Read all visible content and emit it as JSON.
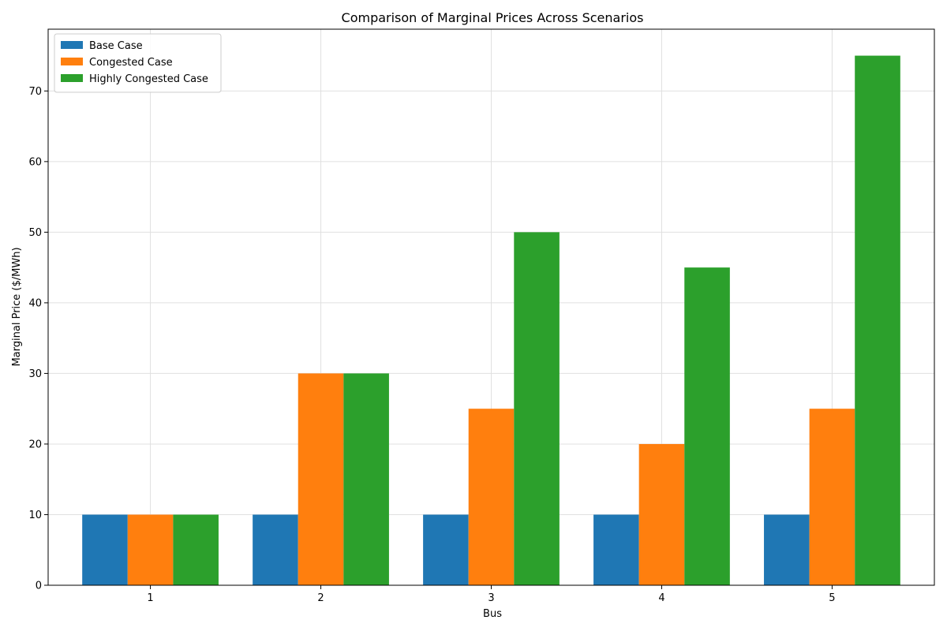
{
  "chart_data": {
    "type": "bar",
    "title": "Comparison of Marginal Prices Across Scenarios",
    "xlabel": "Bus",
    "ylabel": "Marginal Price ($/MWh)",
    "categories": [
      "1",
      "2",
      "3",
      "4",
      "5"
    ],
    "ylim": [
      0,
      78.75
    ],
    "yticks": [
      0,
      10,
      20,
      30,
      40,
      50,
      60,
      70
    ],
    "grid": true,
    "legend_position": "top-left",
    "series": [
      {
        "name": "Base Case",
        "color": "#1f77b4",
        "values": [
          10,
          10,
          10,
          10,
          10
        ]
      },
      {
        "name": "Congested Case",
        "color": "#ff7f0e",
        "values": [
          10,
          30,
          25,
          20,
          25
        ]
      },
      {
        "name": "Highly Congested Case",
        "color": "#2ca02c",
        "values": [
          10,
          30,
          50,
          45,
          75
        ]
      }
    ]
  }
}
